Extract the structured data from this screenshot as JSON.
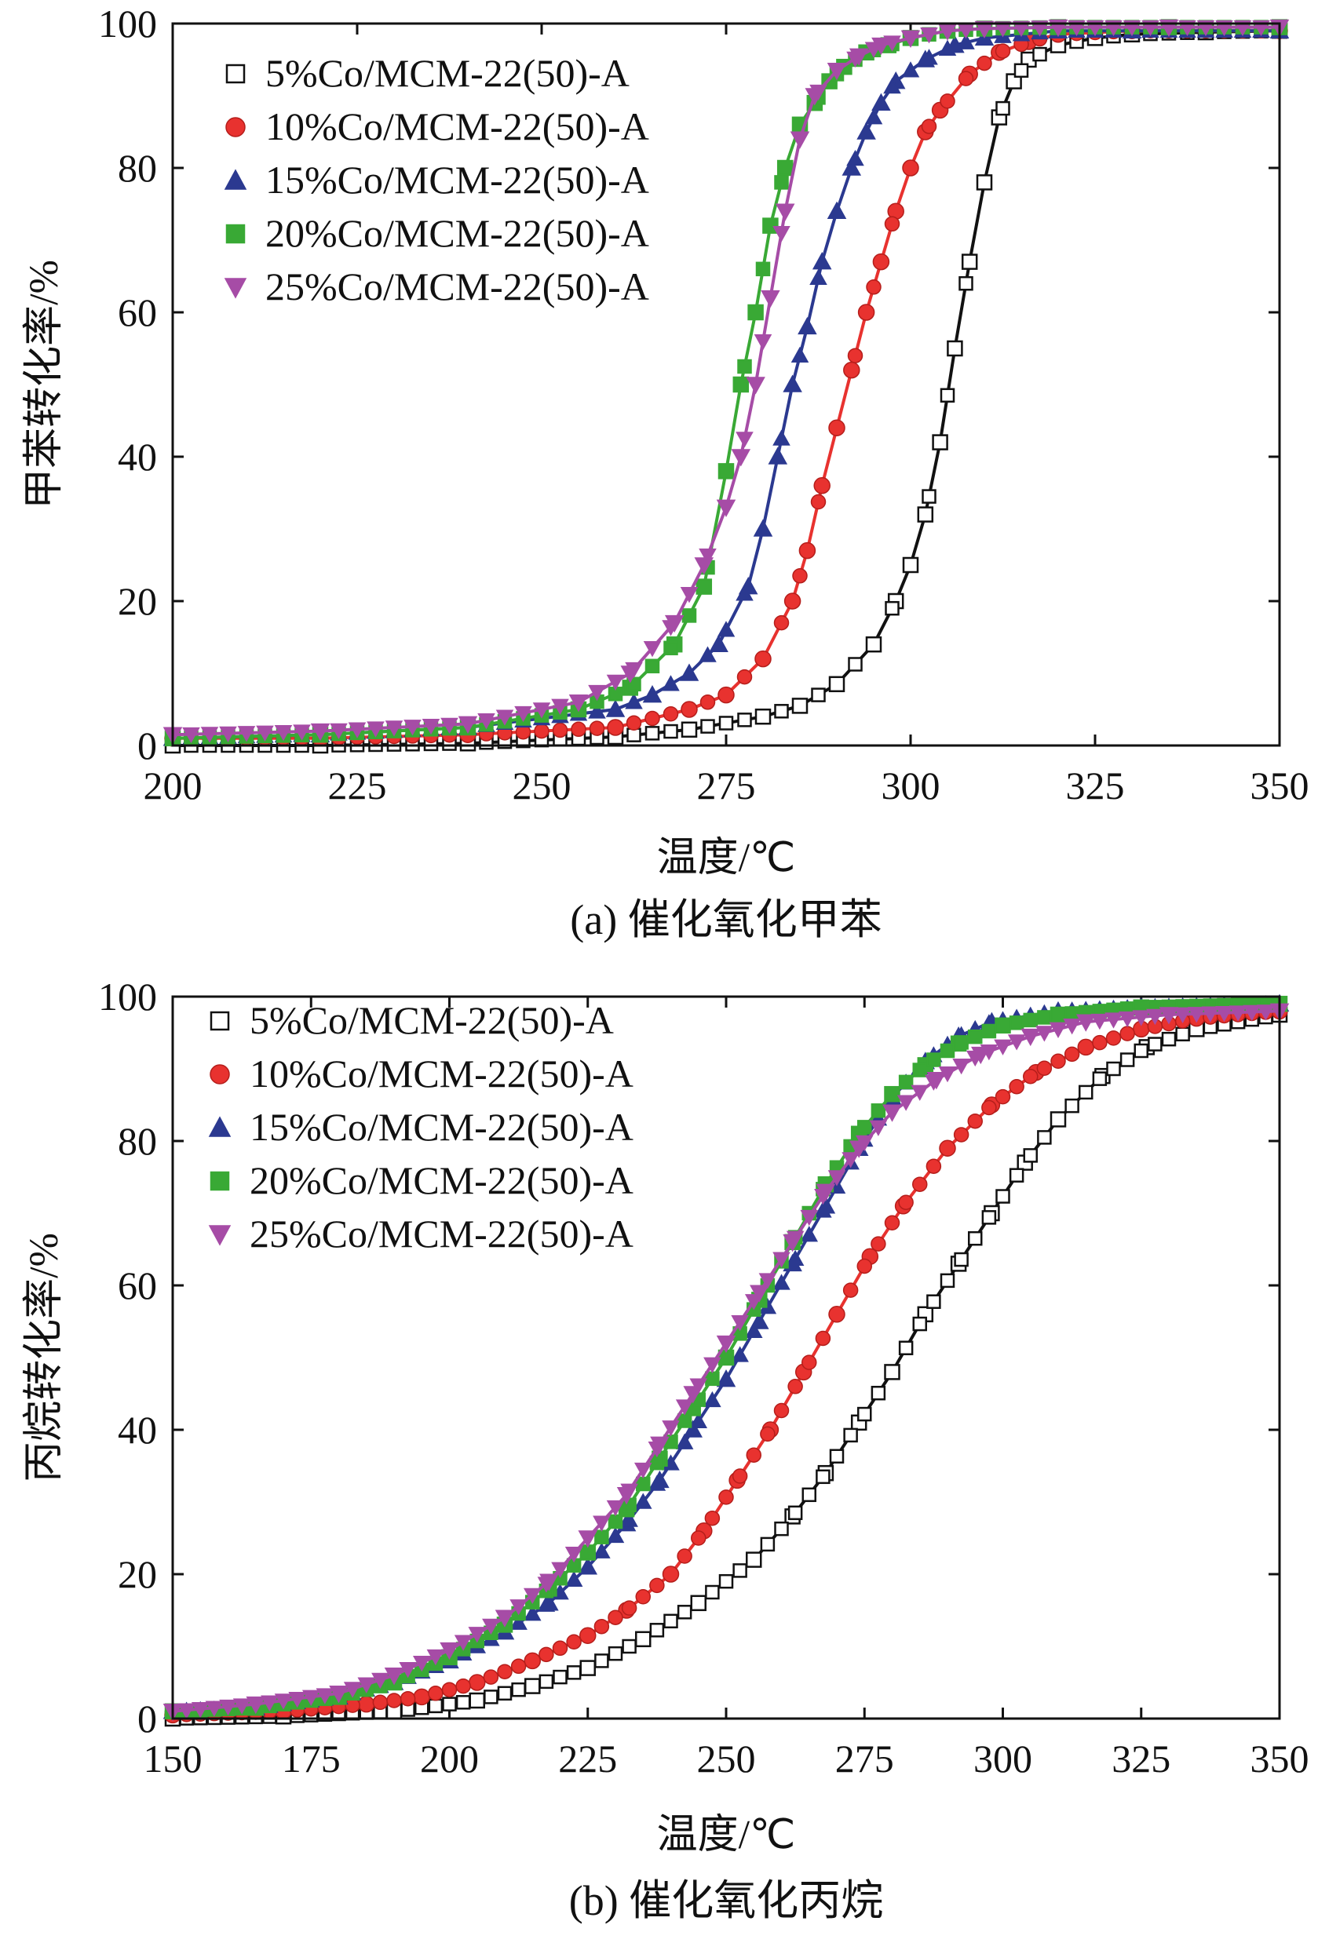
{
  "chart_data": [
    {
      "type": "line",
      "panel": "a",
      "caption": "(a) 催化氧化甲苯",
      "xlabel": "温度/℃",
      "ylabel": "甲苯转化率/%",
      "xlim": [
        200,
        350
      ],
      "ylim": [
        0,
        100
      ],
      "xticks": [
        200,
        225,
        250,
        275,
        300,
        325,
        350
      ],
      "yticks": [
        0,
        20,
        40,
        60,
        80,
        100
      ],
      "legend_position": "top-left",
      "series": [
        {
          "name": "5%Co/MCM-22(50)-A",
          "marker": "square",
          "color": "#111111",
          "fill": "#ffffff",
          "x": [
            200,
            220,
            240,
            260,
            270,
            280,
            285,
            290,
            295,
            298,
            300,
            302,
            304,
            306,
            308,
            310,
            312,
            314,
            316,
            320,
            325,
            330,
            340,
            350
          ],
          "y": [
            0,
            0,
            0.3,
            1.2,
            2.2,
            4,
            5.5,
            8.5,
            14,
            20,
            25,
            32,
            42,
            55,
            67,
            78,
            87,
            92,
            95,
            97,
            98,
            98.5,
            98.8,
            99
          ]
        },
        {
          "name": "10%Co/MCM-22(50)-A",
          "marker": "circle",
          "color": "#e8322f",
          "fill": "#e8322f",
          "x": [
            200,
            220,
            240,
            260,
            270,
            275,
            280,
            284,
            286,
            288,
            290,
            292,
            294,
            296,
            298,
            300,
            302,
            304,
            308,
            312,
            316,
            320,
            330,
            350
          ],
          "y": [
            1,
            1,
            1.5,
            2.5,
            5,
            7,
            12,
            20,
            27,
            36,
            44,
            52,
            60,
            67,
            74,
            80,
            85,
            88,
            93,
            96,
            97.5,
            98.5,
            99,
            99
          ]
        },
        {
          "name": "15%Co/MCM-22(50)-A",
          "marker": "triangle-up",
          "color": "#2b3990",
          "fill": "#2b3990",
          "x": [
            200,
            220,
            240,
            260,
            265,
            270,
            274,
            278,
            280,
            282,
            284,
            286,
            288,
            290,
            292,
            294,
            296,
            298,
            302,
            306,
            310,
            320,
            330,
            350
          ],
          "y": [
            1,
            1.5,
            2.5,
            5,
            7,
            10,
            14,
            22,
            30,
            40,
            50,
            58,
            67,
            74,
            80,
            85,
            89,
            92,
            95,
            97,
            98,
            99,
            99,
            99
          ]
        },
        {
          "name": "20%Co/MCM-22(50)-A",
          "marker": "square-filled",
          "color": "#39a935",
          "fill": "#39a935",
          "x": [
            200,
            220,
            240,
            255,
            262,
            268,
            272,
            275,
            277,
            279,
            281,
            283,
            285,
            287,
            289,
            291,
            294,
            297,
            300,
            305,
            310,
            320,
            335,
            350
          ],
          "y": [
            1,
            1.5,
            2.5,
            5,
            8,
            14,
            22,
            38,
            50,
            60,
            72,
            80,
            86,
            89,
            92,
            94,
            96,
            97,
            98,
            99,
            99.3,
            99.5,
            99.5,
            99.5
          ]
        },
        {
          "name": "25%Co/MCM-22(50)-A",
          "marker": "triangle-down",
          "color": "#a64ca6",
          "fill": "#a64ca6",
          "x": [
            200,
            220,
            240,
            255,
            262,
            268,
            272,
            275,
            277,
            279,
            281,
            283,
            285,
            287,
            290,
            293,
            296,
            300,
            305,
            310,
            320,
            335,
            350
          ],
          "y": [
            1.5,
            2,
            3,
            6,
            10,
            17,
            25,
            33,
            40,
            50,
            62,
            74,
            84,
            90,
            93.5,
            95.5,
            97,
            98,
            99,
            99.3,
            99.5,
            99.5,
            99.5
          ]
        }
      ]
    },
    {
      "type": "line",
      "panel": "b",
      "caption": "(b) 催化氧化丙烷",
      "xlabel": "温度/℃",
      "ylabel": "丙烷转化率/%",
      "xlim": [
        150,
        350
      ],
      "ylim": [
        0,
        100
      ],
      "xticks": [
        150,
        175,
        200,
        225,
        250,
        275,
        300,
        325,
        350
      ],
      "yticks": [
        0,
        20,
        40,
        60,
        80,
        100
      ],
      "legend_position": "top-left",
      "series": [
        {
          "name": "5%Co/MCM-22(50)-A",
          "marker": "square",
          "color": "#111111",
          "fill": "#ffffff",
          "x": [
            150,
            170,
            190,
            205,
            215,
            225,
            235,
            245,
            255,
            262,
            268,
            274,
            280,
            286,
            292,
            298,
            304,
            310,
            318,
            326,
            335,
            350
          ],
          "y": [
            0,
            0.3,
            1,
            2.5,
            4.5,
            7,
            11,
            16,
            22,
            28,
            34,
            41,
            48,
            56,
            63,
            70,
            77,
            83,
            89,
            93,
            95.5,
            97.5
          ]
        },
        {
          "name": "10%Co/MCM-22(50)-A",
          "marker": "circle",
          "color": "#e8322f",
          "fill": "#e8322f",
          "x": [
            150,
            170,
            185,
            195,
            205,
            215,
            225,
            232,
            240,
            246,
            252,
            258,
            264,
            270,
            276,
            282,
            290,
            298,
            306,
            315,
            325,
            335,
            350
          ],
          "y": [
            0.5,
            1,
            2,
            3,
            5,
            8,
            11.5,
            15,
            20,
            26,
            33,
            40,
            48,
            56,
            64,
            71,
            79,
            85,
            89.5,
            93,
            95.5,
            97,
            98
          ]
        },
        {
          "name": "15%Co/MCM-22(50)-A",
          "marker": "triangle-up",
          "color": "#2b3990",
          "fill": "#2b3990",
          "x": [
            150,
            165,
            180,
            190,
            200,
            210,
            218,
            225,
            232,
            238,
            244,
            250,
            256,
            262,
            268,
            274,
            280,
            286,
            292,
            298,
            310,
            325,
            350
          ],
          "y": [
            1,
            1.5,
            3,
            5,
            8,
            12,
            16,
            21,
            27,
            33,
            40,
            47,
            55,
            63,
            71,
            79,
            86,
            91,
            94.5,
            96.5,
            98,
            98.5,
            99
          ]
        },
        {
          "name": "20%Co/MCM-22(50)-A",
          "marker": "square-filled",
          "color": "#39a935",
          "fill": "#39a935",
          "x": [
            150,
            165,
            180,
            190,
            200,
            210,
            218,
            225,
            232,
            238,
            244,
            250,
            256,
            262,
            268,
            274,
            280,
            286,
            292,
            300,
            310,
            325,
            350
          ],
          "y": [
            1,
            1.5,
            3,
            5,
            8.5,
            13,
            18,
            23,
            29,
            36,
            43,
            50,
            58,
            66,
            74,
            81,
            86.5,
            90.5,
            93.5,
            96,
            97.5,
            98.5,
            99
          ]
        },
        {
          "name": "25%Co/MCM-22(50)-A",
          "marker": "triangle-down",
          "color": "#a64ca6",
          "fill": "#a64ca6",
          "x": [
            150,
            165,
            180,
            190,
            200,
            210,
            218,
            225,
            232,
            238,
            244,
            250,
            256,
            262,
            268,
            274,
            280,
            288,
            296,
            305,
            315,
            330,
            350
          ],
          "y": [
            1,
            2,
            3.5,
            6,
            9.5,
            14,
            19,
            25,
            31,
            38,
            45,
            52,
            59,
            66,
            73,
            79,
            84,
            88.5,
            92,
            94.5,
            96.5,
            97.5,
            98
          ]
        }
      ]
    }
  ]
}
